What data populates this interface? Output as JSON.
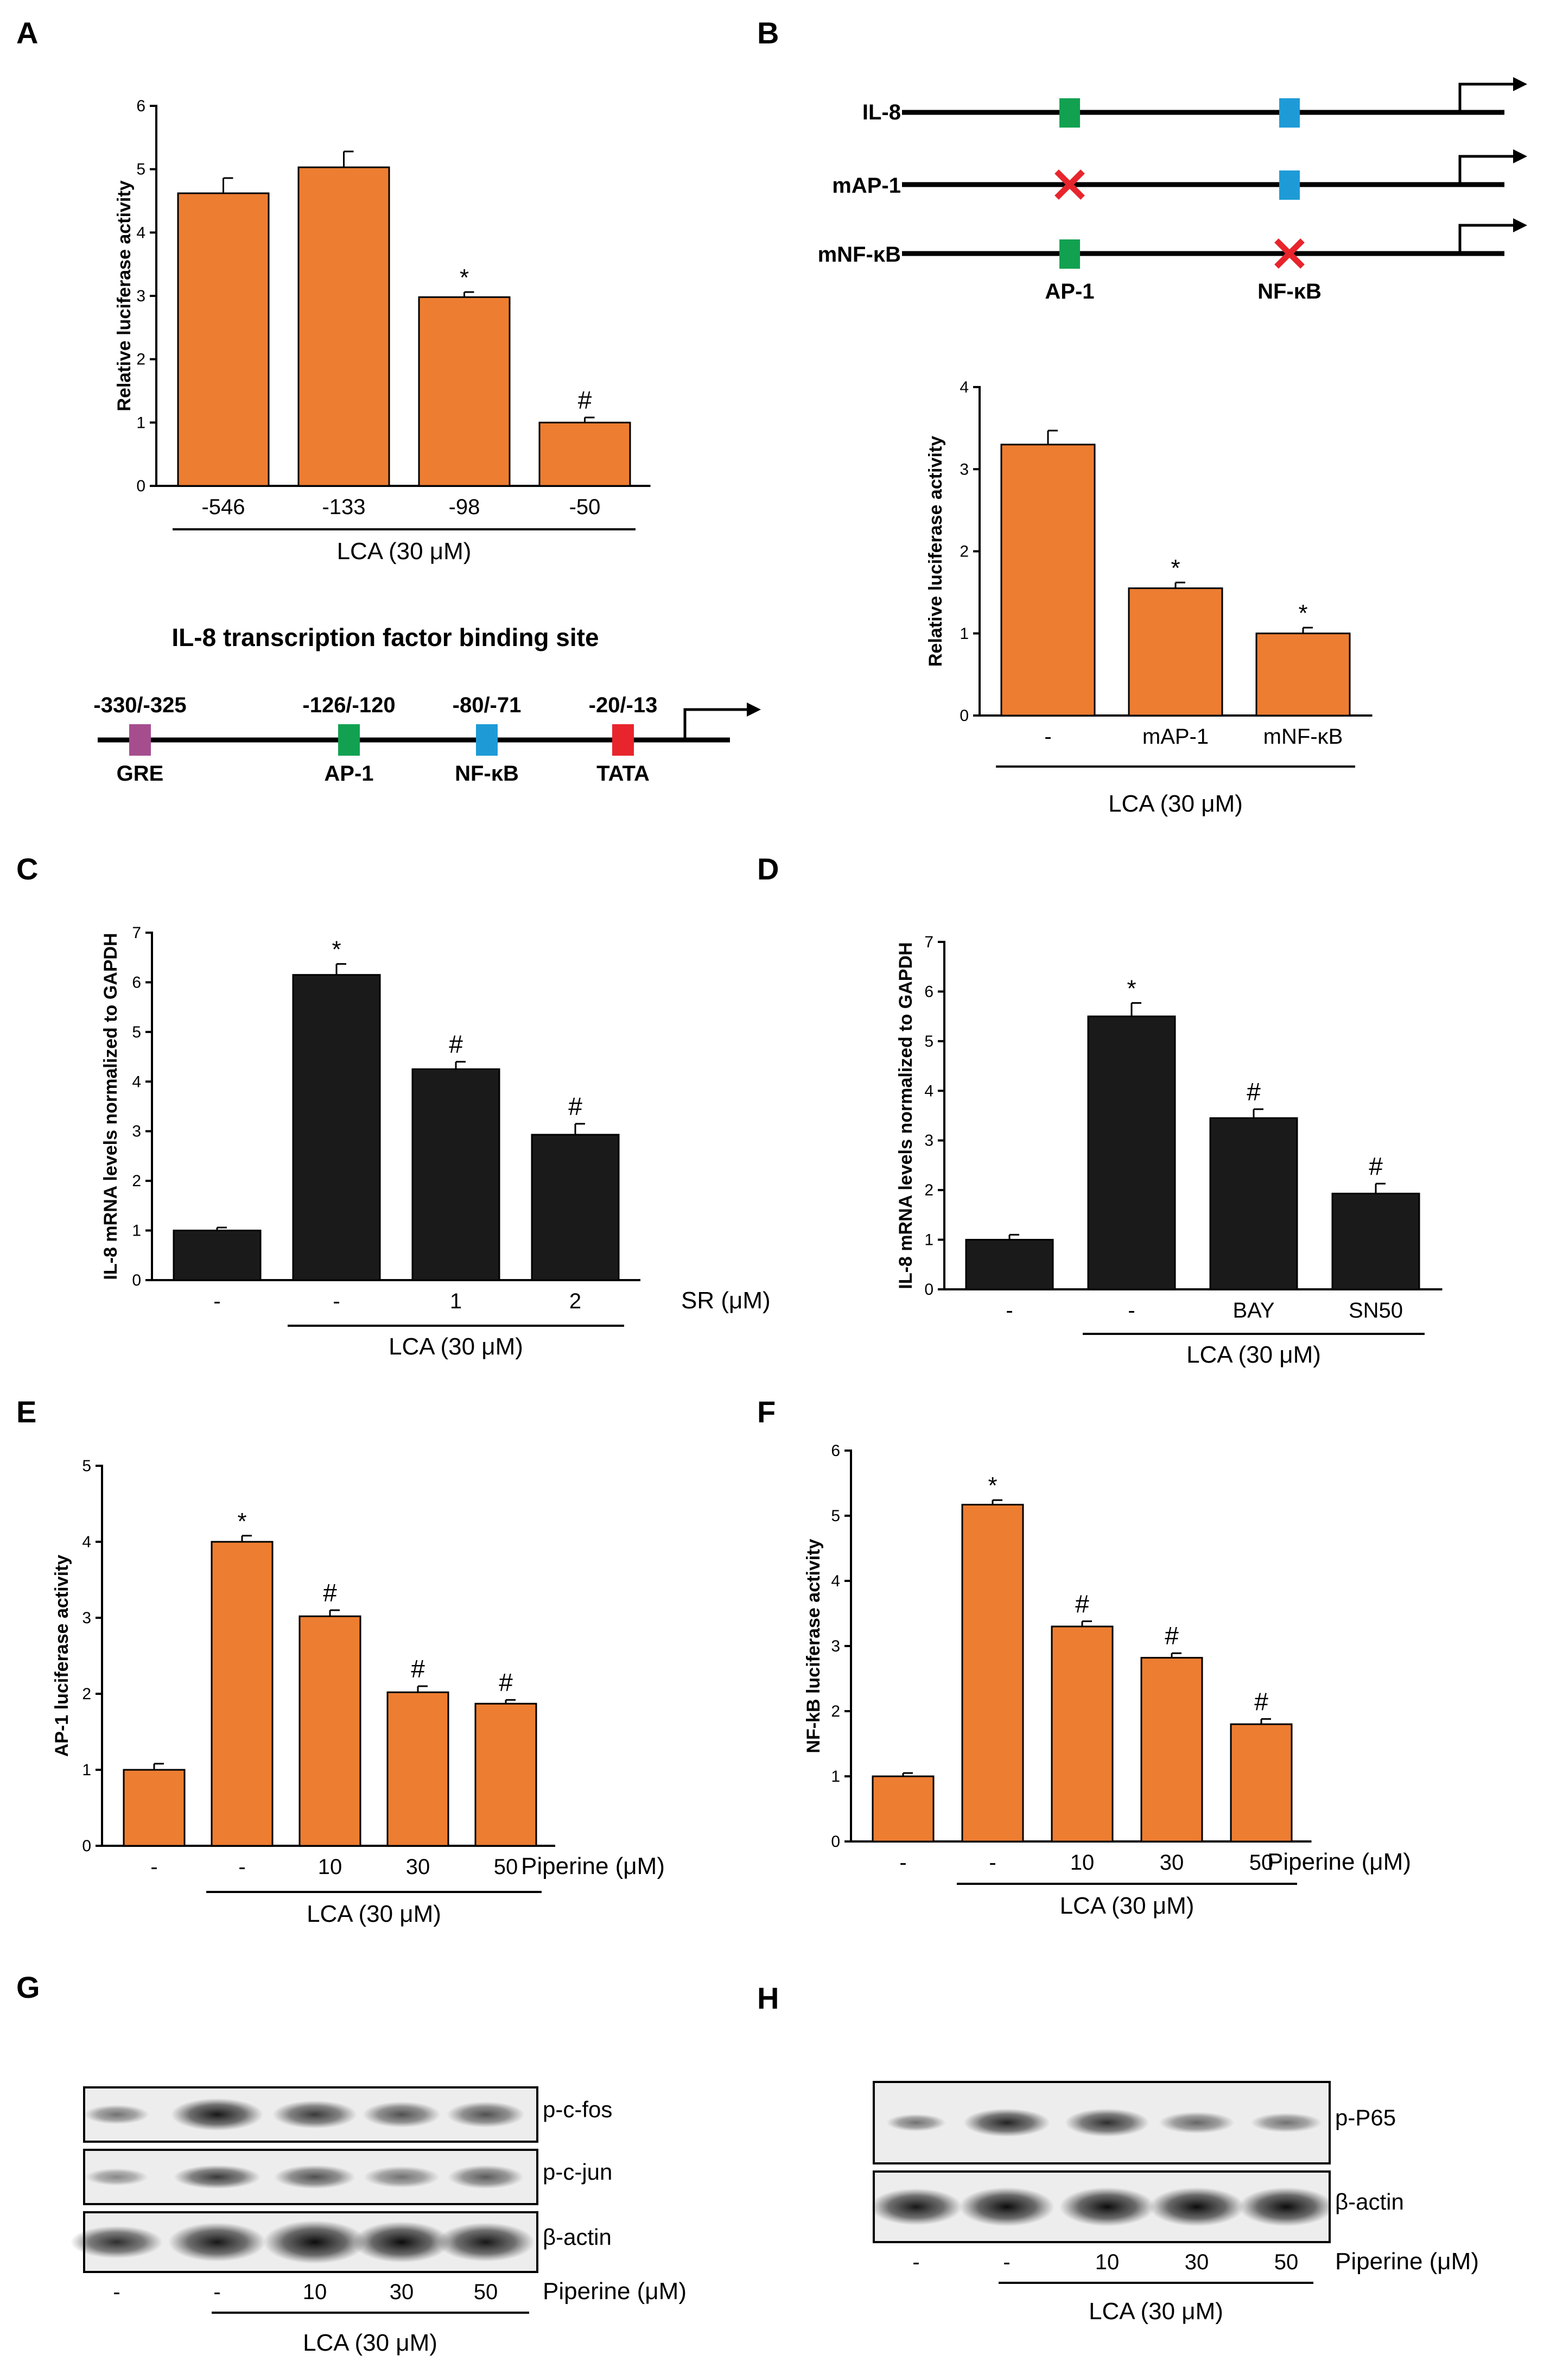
{
  "panels": [
    {
      "id": "A",
      "letter": "A",
      "type": "bar",
      "ylabel": "Relative luciferase activity",
      "yticks": [
        "0",
        "1",
        "2",
        "3",
        "4",
        "5",
        "6"
      ],
      "ylim": [
        0,
        6
      ],
      "categories": [
        "-546",
        "-133",
        "-98",
        "-50"
      ],
      "values": [
        4.62,
        5.03,
        2.98,
        1.0
      ],
      "errors": [
        0.24,
        0.25,
        0.08,
        0.08
      ],
      "marks": [
        "",
        "",
        "*",
        "#"
      ],
      "group_label": "LCA (30 μM)",
      "unit_label": "",
      "bar_color": "#ED7D31"
    },
    {
      "id": "B",
      "letter": "B",
      "type": "bar",
      "ylabel": "Relative luciferase activity",
      "yticks": [
        "0",
        "1",
        "2",
        "3",
        "4"
      ],
      "ylim": [
        0,
        4
      ],
      "categories": [
        "-",
        "mAP-1",
        "mNF-κB"
      ],
      "values": [
        3.3,
        1.55,
        1.0
      ],
      "errors": [
        0.17,
        0.07,
        0.07
      ],
      "marks": [
        "",
        "*",
        "*"
      ],
      "group_label": "LCA (30 μM)",
      "unit_label": "",
      "bar_color": "#ED7D31"
    },
    {
      "id": "C",
      "letter": "C",
      "type": "bar",
      "ylabel": "IL-8 mRNA levels normalized to GAPDH",
      "yticks": [
        "0",
        "1",
        "2",
        "3",
        "4",
        "5",
        "6",
        "7"
      ],
      "ylim": [
        0,
        7
      ],
      "categories": [
        "-",
        "-",
        "1",
        "2"
      ],
      "values": [
        1.0,
        6.15,
        4.25,
        2.93
      ],
      "errors": [
        0.06,
        0.22,
        0.15,
        0.22
      ],
      "marks": [
        "",
        "*",
        "#",
        "#"
      ],
      "group_label": "LCA (30 μM)",
      "unit_label": "SR (μM)",
      "bar_color": "#1A1A1A"
    },
    {
      "id": "D",
      "letter": "D",
      "type": "bar",
      "ylabel": "IL-8 mRNA levels normalized to GAPDH",
      "yticks": [
        "0",
        "1",
        "2",
        "3",
        "4",
        "5",
        "6",
        "7"
      ],
      "ylim": [
        0,
        7
      ],
      "categories": [
        "-",
        "-",
        "BAY",
        "SN50"
      ],
      "values": [
        1.0,
        5.5,
        3.45,
        1.93
      ],
      "errors": [
        0.1,
        0.27,
        0.18,
        0.2
      ],
      "marks": [
        "",
        "*",
        "#",
        "#"
      ],
      "group_label": "LCA (30 μM)",
      "unit_label": "",
      "bar_color": "#1A1A1A"
    },
    {
      "id": "E",
      "letter": "E",
      "type": "bar",
      "ylabel": "AP-1 luciferase activity",
      "yticks": [
        "0",
        "1",
        "2",
        "3",
        "4",
        "5"
      ],
      "ylim": [
        0,
        5
      ],
      "categories": [
        "-",
        "-",
        "10",
        "30",
        "50"
      ],
      "values": [
        1.0,
        4.0,
        3.02,
        2.02,
        1.87
      ],
      "errors": [
        0.08,
        0.08,
        0.08,
        0.08,
        0.05
      ],
      "marks": [
        "",
        "*",
        "#",
        "#",
        "#"
      ],
      "group_label": "LCA (30 μM)",
      "unit_label": "Piperine (μM)",
      "bar_color": "#ED7D31"
    },
    {
      "id": "F",
      "letter": "F",
      "type": "bar",
      "ylabel": "NF-kB luciferase activity",
      "yticks": [
        "0",
        "1",
        "2",
        "3",
        "4",
        "5",
        "6"
      ],
      "ylim": [
        0,
        6
      ],
      "categories": [
        "-",
        "-",
        "10",
        "30",
        "50"
      ],
      "values": [
        1.0,
        5.17,
        3.3,
        2.82,
        1.8
      ],
      "errors": [
        0.05,
        0.07,
        0.08,
        0.07,
        0.08
      ],
      "marks": [
        "",
        "*",
        "#",
        "#",
        "#"
      ],
      "group_label": "LCA (30 μM)",
      "unit_label": "Piperine (μM)",
      "bar_color": "#ED7D31"
    }
  ],
  "schematic_A": {
    "title": "IL-8 transcription factor binding site",
    "sites": [
      {
        "pos": "-330/-325",
        "name": "GRE",
        "color": "#A64D8E"
      },
      {
        "pos": "-126/-120",
        "name": "AP-1",
        "color": "#12A150"
      },
      {
        "pos": "-80/-71",
        "name": "NF-κB",
        "color": "#1E9BD7"
      },
      {
        "pos": "-20/-13",
        "name": "TATA",
        "color": "#E8252C"
      }
    ]
  },
  "schematic_B": {
    "constructs": [
      "IL-8",
      "mAP-1",
      "mNF-κB"
    ],
    "site_labels": [
      "AP-1",
      "NF-κB"
    ],
    "colors": {
      "ap1": "#12A150",
      "nfkb": "#1E9BD7",
      "mutation": "#E8252C"
    }
  },
  "blots": {
    "G": {
      "letter": "G",
      "bands": [
        "p-c-fos",
        "p-c-jun",
        "β-actin"
      ],
      "lanes": [
        "-",
        "-",
        "10",
        "30",
        "50"
      ],
      "unit_label": "Piperine (μM)",
      "group_label": "LCA (30 μM)"
    },
    "H": {
      "letter": "H",
      "bands": [
        "p-P65",
        "β-actin"
      ],
      "lanes": [
        "-",
        "-",
        "10",
        "30",
        "50"
      ],
      "unit_label": "Piperine (μM)",
      "group_label": "LCA (30 μM)"
    }
  },
  "chart_data": [
    {
      "panel": "A",
      "type": "bar",
      "ylabel": "Relative luciferase activity",
      "categories": [
        "-546",
        "-133",
        "-98",
        "-50"
      ],
      "values": [
        4.62,
        5.03,
        2.98,
        1.0
      ],
      "ylim": [
        0,
        6
      ],
      "xlabel": "LCA (30 μM)"
    },
    {
      "panel": "B",
      "type": "bar",
      "ylabel": "Relative luciferase activity",
      "categories": [
        "-",
        "mAP-1",
        "mNF-κB"
      ],
      "values": [
        3.3,
        1.55,
        1.0
      ],
      "ylim": [
        0,
        4
      ],
      "xlabel": "LCA (30 μM)"
    },
    {
      "panel": "C",
      "type": "bar",
      "ylabel": "IL-8 mRNA levels normalized to GAPDH",
      "categories": [
        "-",
        "-",
        "1",
        "2"
      ],
      "values": [
        1.0,
        6.15,
        4.25,
        2.93
      ],
      "ylim": [
        0,
        7
      ],
      "xlabel": "SR (μM), LCA (30 μM)"
    },
    {
      "panel": "D",
      "type": "bar",
      "ylabel": "IL-8 mRNA levels normalized to GAPDH",
      "categories": [
        "-",
        "-",
        "BAY",
        "SN50"
      ],
      "values": [
        1.0,
        5.5,
        3.45,
        1.93
      ],
      "ylim": [
        0,
        7
      ],
      "xlabel": "LCA (30 μM)"
    },
    {
      "panel": "E",
      "type": "bar",
      "ylabel": "AP-1 luciferase activity",
      "categories": [
        "-",
        "-",
        "10",
        "30",
        "50"
      ],
      "values": [
        1.0,
        4.0,
        3.02,
        2.02,
        1.87
      ],
      "ylim": [
        0,
        5
      ],
      "xlabel": "Piperine (μM), LCA (30 μM)"
    },
    {
      "panel": "F",
      "type": "bar",
      "ylabel": "NF-kB luciferase activity",
      "categories": [
        "-",
        "-",
        "10",
        "30",
        "50"
      ],
      "values": [
        1.0,
        5.17,
        3.3,
        2.82,
        1.8
      ],
      "ylim": [
        0,
        6
      ],
      "xlabel": "Piperine (μM), LCA (30 μM)"
    }
  ]
}
